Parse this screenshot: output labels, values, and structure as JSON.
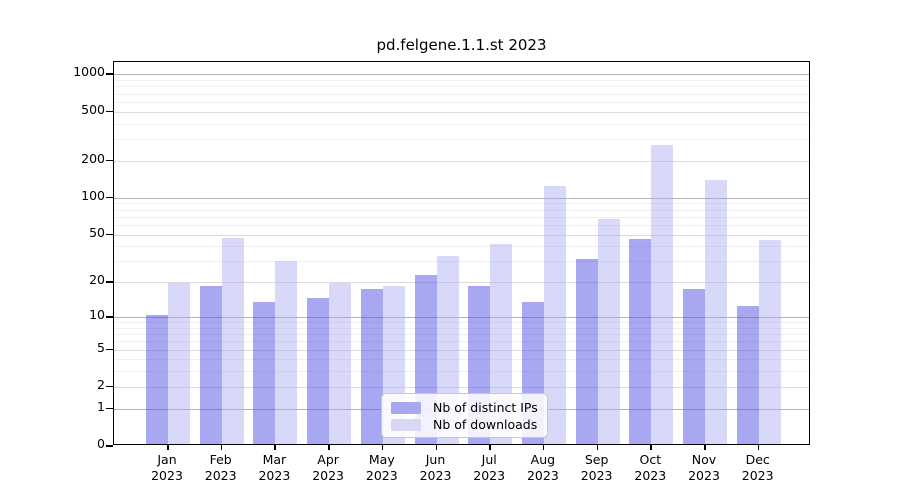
{
  "title": "pd.felgene.1.1.st 2023",
  "chart_data": {
    "type": "bar",
    "title": "pd.felgene.1.1.st 2023",
    "xlabel": "",
    "ylabel": "",
    "categories": [
      "Jan 2023",
      "Feb 2023",
      "Mar 2023",
      "Apr 2023",
      "May 2023",
      "Jun 2023",
      "Jul 2023",
      "Aug 2023",
      "Sep 2023",
      "Oct 2023",
      "Nov 2023",
      "Dec 2023"
    ],
    "x_tick_month": [
      "Jan",
      "Feb",
      "Mar",
      "Apr",
      "May",
      "Jun",
      "Jul",
      "Aug",
      "Sep",
      "Oct",
      "Nov",
      "Dec"
    ],
    "x_tick_year": "2023",
    "series": [
      {
        "name": "Nb of distinct IPs",
        "values": [
          10,
          18,
          13,
          14,
          17,
          22,
          18,
          13,
          30,
          44,
          17,
          12
        ],
        "fill": "rgba(80,80,230,0.5)",
        "swatch": "#a8a8f2"
      },
      {
        "name": "Nb of downloads",
        "values": [
          19,
          45,
          29,
          19,
          18,
          32,
          40,
          120,
          65,
          260,
          135,
          43
        ],
        "fill": "rgba(168,168,240,0.45)",
        "swatch": "#d8d8f6"
      }
    ],
    "y_scale": "log1p",
    "y_ticks": [
      0,
      1,
      2,
      5,
      10,
      20,
      50,
      100,
      200,
      500,
      1000
    ],
    "y_tick_labels": [
      "0",
      "1",
      "2",
      "5",
      "10",
      "20",
      "50",
      "100",
      "200",
      "500",
      "1000"
    ],
    "ylim": [
      0,
      1200
    ],
    "grid": "horizontal log minor gridlines",
    "legend_position": "lower center inside plot"
  },
  "legend": {
    "items": [
      {
        "label": "Nb of distinct IPs"
      },
      {
        "label": "Nb of downloads"
      }
    ]
  },
  "colors": {
    "background": "#ffffff",
    "spine": "#000000",
    "grid_major": "#b3b3b3",
    "grid_sub": "#dcdcdc",
    "grid_minor": "#efefef",
    "bar_distinct_ips": "#a8a8f2",
    "bar_downloads": "#d8d8f6"
  }
}
